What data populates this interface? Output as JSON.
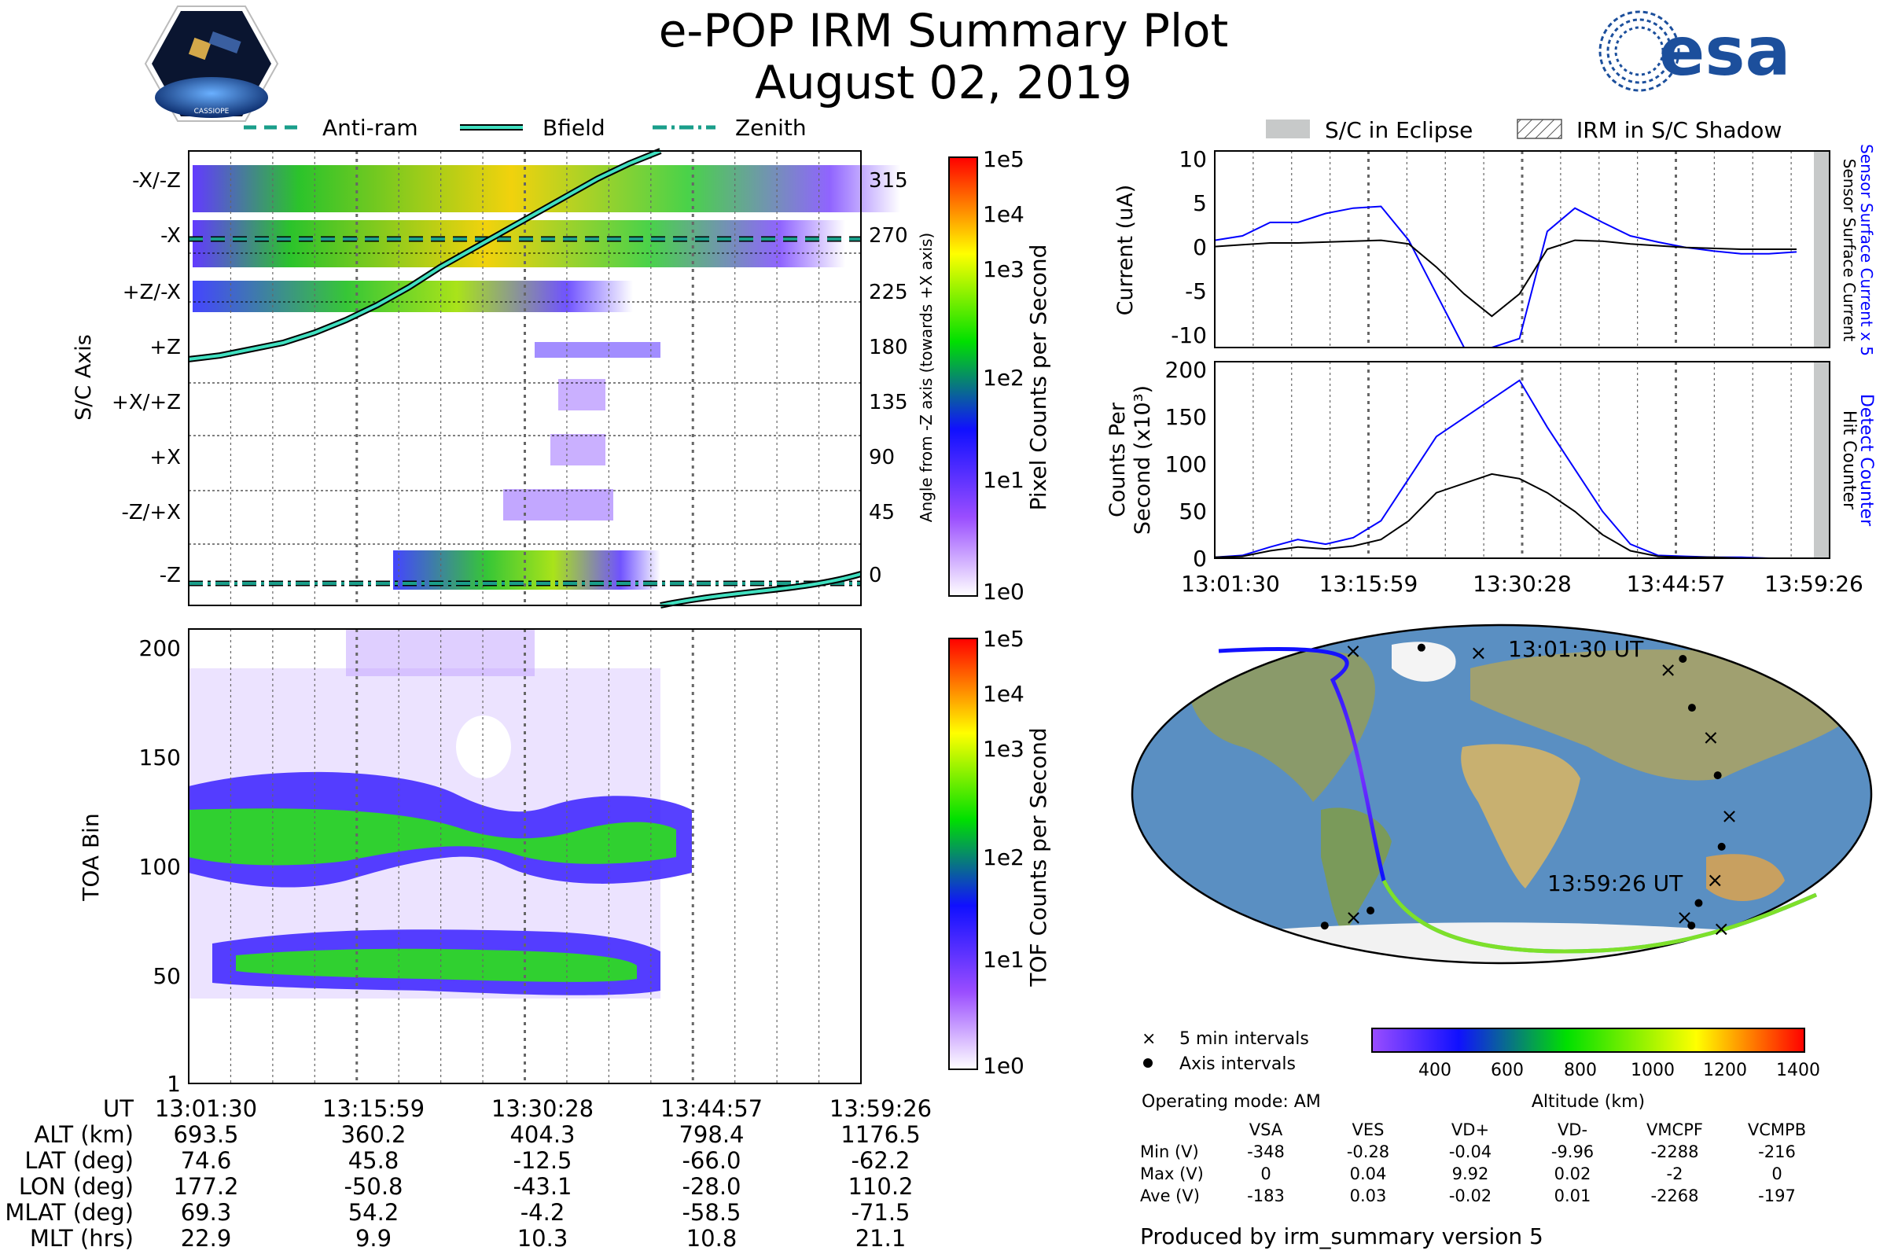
{
  "header": {
    "title_line1": "e-POP IRM Summary Plot",
    "title_line2": "August 02, 2019",
    "logo_left_text": "CASSIOPE",
    "logo_right_text": "esa"
  },
  "colors": {
    "anti_ram": "#1a9e8a",
    "bfield": "#40e0c0",
    "zenith": "#1a9e8a",
    "sensor_current": "#0000ff",
    "detect_counter": "#0000ff",
    "eclipse": "#c7c9c9"
  },
  "chart_data": [
    {
      "id": "axis-spectrogram",
      "type": "heatmap",
      "legend": [
        "Anti-ram",
        "Bfield",
        "Zenith"
      ],
      "ylabel": "S/C Axis",
      "y_ticks_left": [
        "-X/-Z",
        "-X",
        "+Z/-X",
        "+Z",
        "+X/+Z",
        "+X",
        "-Z/+X",
        "-Z"
      ],
      "y_ticks_right": [
        "315",
        "270",
        "225",
        "180",
        "135",
        "90",
        "45",
        "0"
      ],
      "y2label": "Angle from -Z axis (towards +X axis)",
      "ylim": [
        -20,
        340
      ],
      "colorbar": {
        "label": "Pixel Counts per Second",
        "ticks": [
          "1e5",
          "1e4",
          "1e3",
          "1e2",
          "1e1",
          "1e0"
        ]
      },
      "bfield_angle_deg": [
        175,
        178,
        183,
        188,
        196,
        206,
        218,
        232,
        248,
        262,
        276,
        290,
        304,
        318,
        330,
        340
      ]
    },
    {
      "id": "toa-spectrogram",
      "type": "heatmap",
      "ylabel": "TOA Bin",
      "y_ticks": [
        "200",
        "150",
        "100",
        "50",
        "1"
      ],
      "ylim": [
        1,
        210
      ],
      "colorbar": {
        "label": "TOF Counts per Second",
        "ticks": [
          "1e5",
          "1e4",
          "1e3",
          "1e2",
          "1e1",
          "1e0"
        ]
      }
    },
    {
      "id": "current-plot",
      "type": "line",
      "ylabel": "Current (uA)",
      "y_ticks": [
        "10",
        "5",
        "0",
        "-5",
        "-10"
      ],
      "ylim": [
        -11,
        11
      ],
      "legend": [
        "S/C in Eclipse",
        "IRM in S/C Shadow"
      ],
      "series": [
        {
          "name": "Sensor Surface Current x 5",
          "values": [
            1,
            1.5,
            3,
            3,
            4,
            4.6,
            4.8,
            1,
            -5,
            -11,
            -11,
            -10,
            2,
            4.6,
            3,
            1.5,
            0.8,
            0.2,
            -0.2,
            -0.5,
            -0.5,
            -0.3
          ]
        },
        {
          "name": "Sensor Surface Current",
          "values": [
            0.3,
            0.5,
            0.7,
            0.7,
            0.8,
            0.9,
            1,
            0.6,
            -2,
            -5,
            -7.5,
            -5,
            0,
            1,
            0.9,
            0.6,
            0.4,
            0.2,
            0.1,
            0,
            0,
            0
          ]
        }
      ]
    },
    {
      "id": "counts-plot",
      "type": "line",
      "ylabel": "Counts Per Second (x10³)",
      "y_ticks": [
        "200",
        "150",
        "100",
        "50",
        "0"
      ],
      "ylim": [
        0,
        210
      ],
      "x_ticks": [
        "13:01:30",
        "13:15:59",
        "13:30:28",
        "13:44:57",
        "13:59:26"
      ],
      "series": [
        {
          "name": "Detect Counter",
          "values": [
            1,
            3,
            12,
            20,
            15,
            22,
            40,
            85,
            130,
            150,
            170,
            190,
            140,
            95,
            50,
            15,
            3,
            2,
            1,
            1,
            0,
            0
          ]
        },
        {
          "name": "Hit Counter",
          "values": [
            1,
            2,
            8,
            12,
            10,
            13,
            20,
            40,
            70,
            80,
            90,
            85,
            70,
            50,
            25,
            8,
            2,
            1,
            1,
            0,
            0,
            0
          ]
        }
      ]
    },
    {
      "id": "orbit-map",
      "type": "scatter",
      "start_label": "13:01:30 UT",
      "end_label": "13:59:26 UT",
      "legend": [
        "5 min intervals",
        "Axis intervals"
      ],
      "colorbar": {
        "label": "Altitude (km)",
        "ticks": [
          "400",
          "600",
          "800",
          "1000",
          "1200",
          "1400"
        ]
      },
      "track_lon_lat": [
        [
          177,
          75
        ],
        [
          120,
          78
        ],
        [
          60,
          76
        ],
        [
          -10,
          72
        ],
        [
          -40,
          66
        ],
        [
          -50,
          46
        ],
        [
          -51,
          30
        ],
        [
          -52,
          10
        ],
        [
          -47,
          -12
        ],
        [
          -45,
          -28
        ],
        [
          -38,
          -46
        ],
        [
          -32,
          -58
        ],
        [
          -28,
          -66
        ],
        [
          -10,
          -70
        ],
        [
          20,
          -72
        ],
        [
          60,
          -70
        ],
        [
          90,
          -66
        ],
        [
          110,
          -62
        ]
      ]
    }
  ],
  "footer": {
    "row_labels": [
      "UT",
      "ALT (km)",
      "LAT (deg)",
      "LON (deg)",
      "MLAT (deg)",
      "MLT (hrs)"
    ],
    "columns": [
      [
        "13:01:30",
        "693.5",
        "74.6",
        "177.2",
        "69.3",
        "22.9"
      ],
      [
        "13:15:59",
        "360.2",
        "45.8",
        "-50.8",
        "54.2",
        "9.9"
      ],
      [
        "13:30:28",
        "404.3",
        "-12.5",
        "-43.1",
        "-4.2",
        "10.3"
      ],
      [
        "13:44:57",
        "798.4",
        "-66.0",
        "-28.0",
        "-58.5",
        "10.8"
      ],
      [
        "13:59:26",
        "1176.5",
        "-62.2",
        "110.2",
        "-71.5",
        "21.1"
      ]
    ]
  },
  "voltages": {
    "mode": "Operating mode: AM",
    "headers": [
      "VSA",
      "VES",
      "VD+",
      "VD-",
      "VMCPF",
      "VCMPB"
    ],
    "rows": [
      {
        "label": "Min (V)",
        "values": [
          "-348",
          "-0.28",
          "-0.04",
          "-9.96",
          "-2288",
          "-216"
        ]
      },
      {
        "label": "Max (V)",
        "values": [
          "0",
          "0.04",
          "9.92",
          "0.02",
          "-2",
          "0"
        ]
      },
      {
        "label": "Ave (V)",
        "values": [
          "-183",
          "0.03",
          "-0.02",
          "0.01",
          "-2268",
          "-197"
        ]
      }
    ],
    "produced_by": "Produced by irm_summary version 5"
  }
}
